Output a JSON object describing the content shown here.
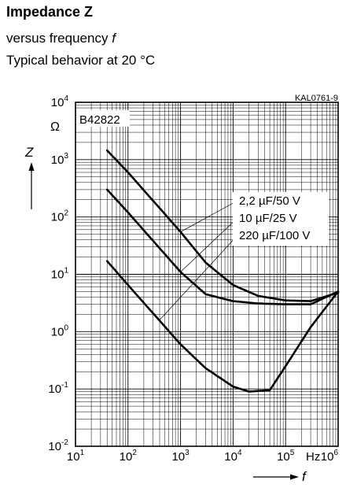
{
  "header": {
    "title": "Impedance Z",
    "subtitle_prefix": "versus frequency",
    "subtitle_var": "f",
    "subtitle_line2": "Typical behavior at 20 °C"
  },
  "chart_data": {
    "type": "line",
    "code": "KAL0761-9",
    "part": "B42822",
    "ylabel": "Z",
    "yunit": "Ω",
    "xlabel": "f",
    "xunit": "Hz",
    "xscale": "log",
    "yscale": "log",
    "xlim": [
      10,
      1000000
    ],
    "ylim": [
      0.01,
      10000
    ],
    "grid": true,
    "xticks": [
      {
        "base": "10",
        "exp": "1",
        "value": 10
      },
      {
        "base": "10",
        "exp": "2",
        "value": 100
      },
      {
        "base": "10",
        "exp": "3",
        "value": 1000
      },
      {
        "base": "10",
        "exp": "4",
        "value": 10000
      },
      {
        "base": "10",
        "exp": "5",
        "value": 100000
      },
      {
        "base": "10",
        "exp": "6",
        "value": 1000000
      }
    ],
    "yticks": [
      {
        "base": "10",
        "exp": "-2",
        "value": 0.01
      },
      {
        "base": "10",
        "exp": "-1",
        "value": 0.1
      },
      {
        "base": "10",
        "exp": "0",
        "value": 1
      },
      {
        "base": "10",
        "exp": "1",
        "value": 10
      },
      {
        "base": "10",
        "exp": "2",
        "value": 100
      },
      {
        "base": "10",
        "exp": "3",
        "value": 1000
      },
      {
        "base": "10",
        "exp": "4",
        "value": 10000
      }
    ],
    "series": [
      {
        "name": "2,2 µF/50 V",
        "x": [
          40,
          100,
          1000,
          3000,
          10000,
          30000,
          100000,
          300000,
          1000000
        ],
        "y": [
          1450,
          600,
          55,
          16,
          6.5,
          4.2,
          3.5,
          3.4,
          4.8
        ]
      },
      {
        "name": "10 µF/25 V",
        "x": [
          40,
          100,
          1000,
          3000,
          10000,
          30000,
          100000,
          300000,
          1000000
        ],
        "y": [
          300,
          120,
          11,
          4.5,
          3.4,
          3.1,
          3.0,
          3.0,
          5.0
        ]
      },
      {
        "name": "220 µF/100 V",
        "x": [
          40,
          100,
          1000,
          3000,
          10000,
          20000,
          50000,
          100000,
          300000,
          1000000
        ],
        "y": [
          17,
          6.5,
          0.6,
          0.23,
          0.11,
          0.09,
          0.095,
          0.25,
          1.2,
          5.0
        ]
      }
    ]
  }
}
